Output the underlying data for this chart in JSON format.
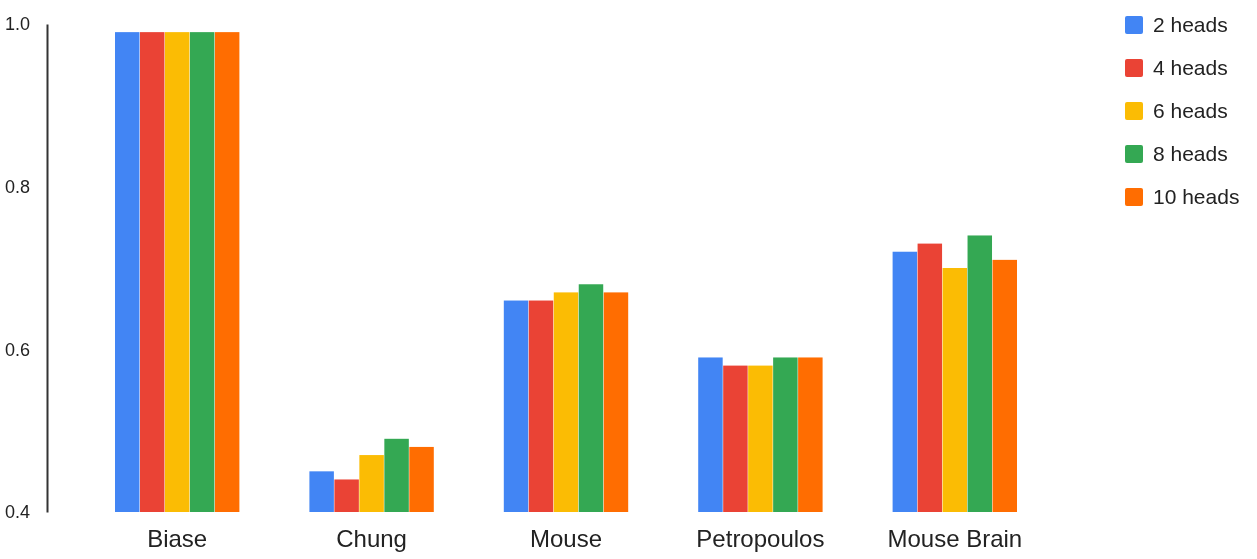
{
  "chart_data": {
    "type": "bar",
    "categories": [
      "Biase",
      "Chung",
      "Mouse",
      "Petropoulos",
      "Mouse Brain"
    ],
    "series": [
      {
        "name": "2 heads",
        "color": "#4285f4",
        "values": [
          0.99,
          0.45,
          0.66,
          0.59,
          0.72
        ]
      },
      {
        "name": "4 heads",
        "color": "#ea4335",
        "values": [
          0.99,
          0.44,
          0.66,
          0.58,
          0.73
        ]
      },
      {
        "name": "6 heads",
        "color": "#fbbc04",
        "values": [
          0.99,
          0.47,
          0.67,
          0.58,
          0.7
        ]
      },
      {
        "name": "8 heads",
        "color": "#34a853",
        "values": [
          0.99,
          0.49,
          0.68,
          0.59,
          0.74
        ]
      },
      {
        "name": "10 heads",
        "color": "#ff6d01",
        "values": [
          0.99,
          0.48,
          0.67,
          0.59,
          0.71
        ]
      }
    ],
    "ylim": [
      0.4,
      1.0
    ],
    "yticks": [
      {
        "value": 0.4,
        "label": "0.4"
      },
      {
        "value": 0.6,
        "label": "0.6"
      },
      {
        "value": 0.8,
        "label": "0.8"
      },
      {
        "value": 1.0,
        "label": "1.0"
      }
    ],
    "grid": false,
    "legend": "top right"
  }
}
